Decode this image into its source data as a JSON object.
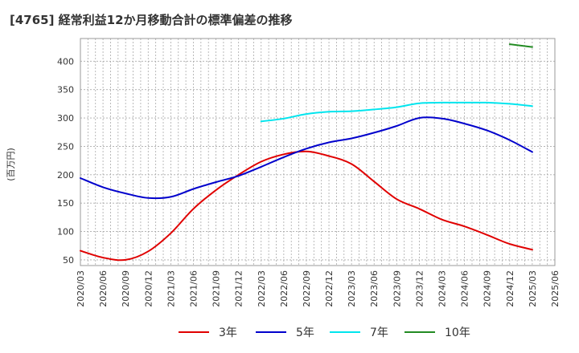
{
  "title": "[4765]  経常利益12か月移動合計の標準偏差の推移",
  "y_unit_label": "(百万円)",
  "chart_data": {
    "type": "line",
    "title": "[4765]  経常利益12か月移動合計の標準偏差の推移",
    "ylabel": "(百万円)",
    "xlabel": "",
    "ylim": [
      40,
      440
    ],
    "yticks": [
      50,
      100,
      150,
      200,
      250,
      300,
      350,
      400
    ],
    "grid": true,
    "legend_position": "bottom",
    "x_ticks": [
      "2020/03",
      "2020/06",
      "2020/09",
      "2020/12",
      "2021/03",
      "2021/06",
      "2021/09",
      "2021/12",
      "2022/03",
      "2022/06",
      "2022/09",
      "2022/12",
      "2023/03",
      "2023/06",
      "2023/09",
      "2023/12",
      "2024/03",
      "2024/06",
      "2024/09",
      "2024/12",
      "2025/03",
      "2025/06"
    ],
    "series": [
      {
        "name": "3年",
        "color": "#e00000",
        "x": [
          "2020/03",
          "2020/06",
          "2020/09",
          "2020/12",
          "2021/03",
          "2021/06",
          "2021/09",
          "2021/12",
          "2022/03",
          "2022/06",
          "2022/09",
          "2022/12",
          "2023/03",
          "2023/06",
          "2023/09",
          "2023/12",
          "2024/03",
          "2024/06",
          "2024/09",
          "2024/12",
          "2025/03"
        ],
        "values": [
          66,
          54,
          50,
          65,
          97,
          140,
          173,
          200,
          223,
          236,
          241,
          233,
          219,
          188,
          157,
          140,
          121,
          109,
          94,
          78,
          68
        ]
      },
      {
        "name": "5年",
        "color": "#0000cc",
        "x": [
          "2020/03",
          "2020/06",
          "2020/09",
          "2020/12",
          "2021/03",
          "2021/06",
          "2021/09",
          "2021/12",
          "2022/03",
          "2022/06",
          "2022/09",
          "2022/12",
          "2023/03",
          "2023/06",
          "2023/09",
          "2023/12",
          "2024/03",
          "2024/06",
          "2024/09",
          "2024/12",
          "2025/03"
        ],
        "values": [
          194,
          178,
          167,
          159,
          161,
          175,
          187,
          198,
          214,
          231,
          246,
          257,
          264,
          274,
          286,
          300,
          299,
          290,
          278,
          261,
          240
        ]
      },
      {
        "name": "7年",
        "color": "#00e5ee",
        "x": [
          "2022/03",
          "2022/06",
          "2022/09",
          "2022/12",
          "2023/03",
          "2023/06",
          "2023/09",
          "2023/12",
          "2024/03",
          "2024/06",
          "2024/09",
          "2024/12",
          "2025/03"
        ],
        "values": [
          294,
          299,
          307,
          311,
          312,
          315,
          319,
          326,
          327,
          327,
          327,
          325,
          321
        ]
      },
      {
        "name": "10年",
        "color": "#228b22",
        "x": [
          "2024/12",
          "2025/03"
        ],
        "values": [
          430,
          425
        ]
      }
    ]
  }
}
